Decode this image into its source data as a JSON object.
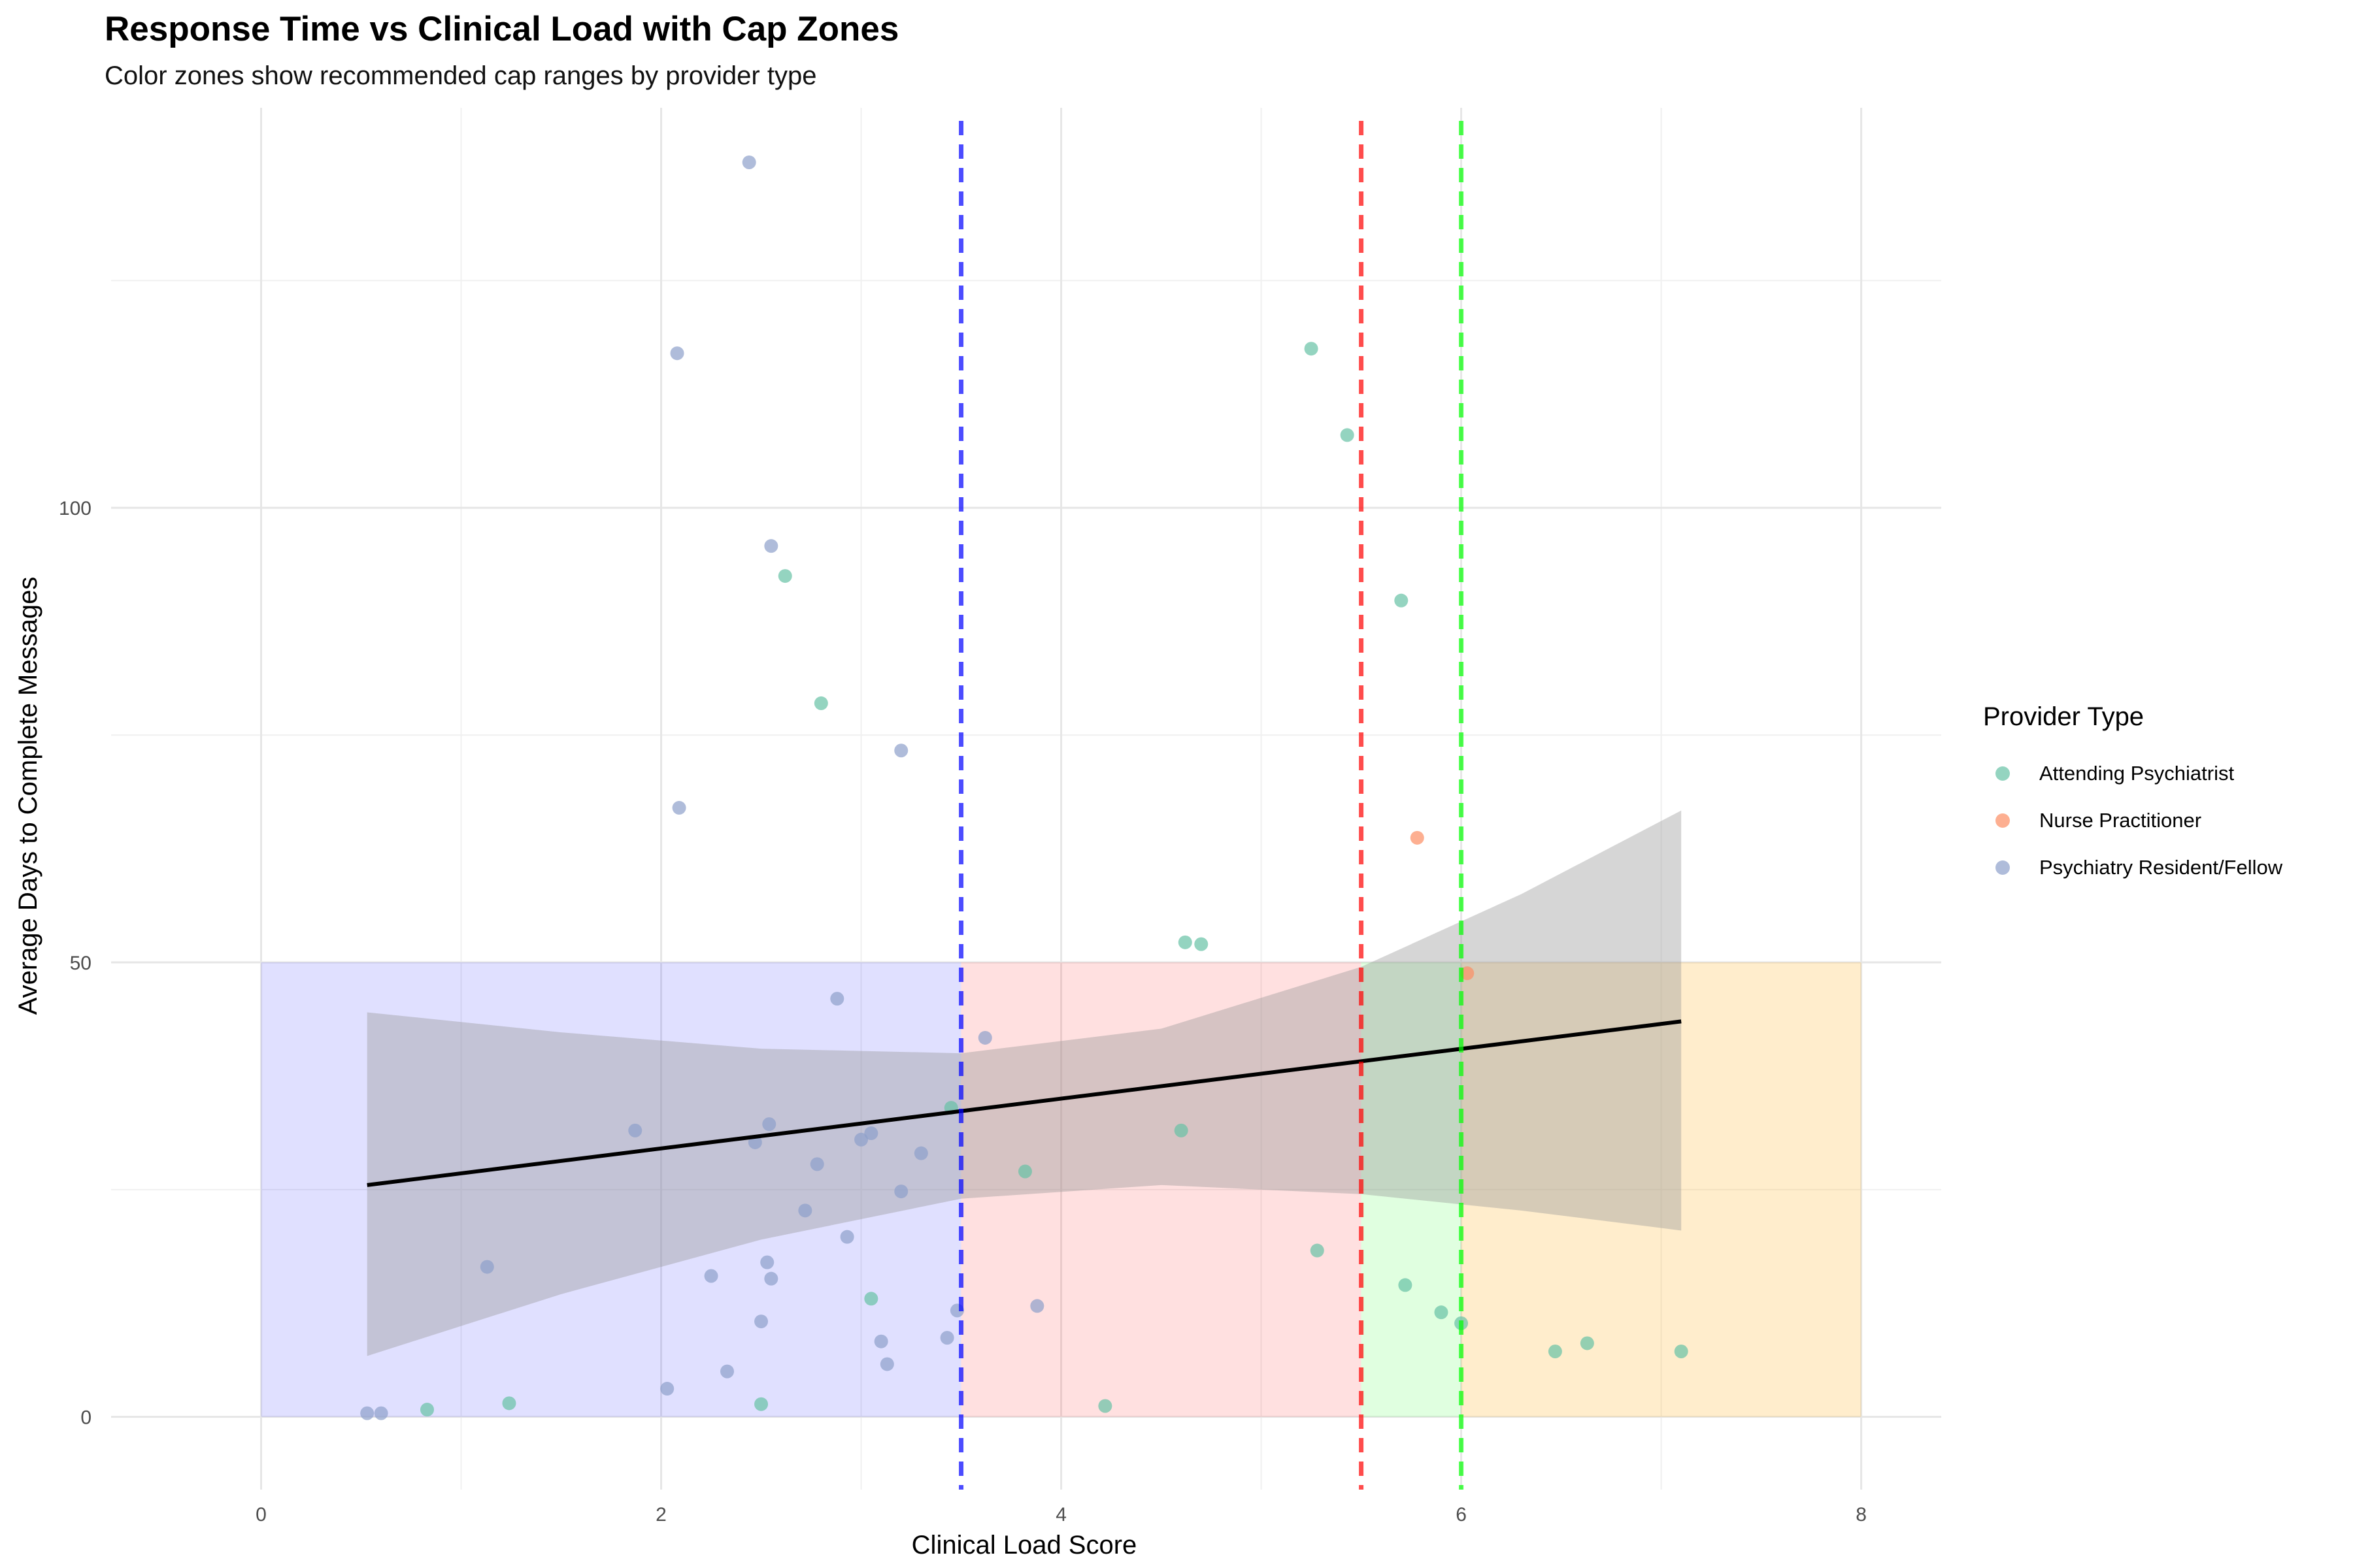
{
  "chart_data": {
    "type": "scatter",
    "title": "Response Time vs Clinical Load with Cap Zones",
    "subtitle": "Color zones show recommended cap ranges by provider type",
    "xlabel": "Clinical Load Score",
    "ylabel": "Average Days to Complete Messages",
    "xlim": [
      -0.75,
      8.4
    ],
    "ylim": [
      -8,
      144
    ],
    "x_ticks": [
      0,
      2,
      4,
      6,
      8
    ],
    "y_ticks": [
      0,
      50,
      100
    ],
    "grid": true,
    "legend": {
      "title": "Provider Type",
      "position": "right",
      "entries": [
        {
          "label": "Attending Psychiatrist",
          "color": "#66c2a5"
        },
        {
          "label": "Nurse Practitioner",
          "color": "#fc8d62"
        },
        {
          "label": "Psychiatry Resident/Fellow",
          "color": "#8da0cb"
        }
      ]
    },
    "zones": [
      {
        "x": [
          0,
          3.5
        ],
        "y": [
          0,
          50
        ],
        "color": "#0000ff",
        "opacity": 0.12
      },
      {
        "x": [
          3.5,
          5.5
        ],
        "y": [
          0,
          50
        ],
        "color": "#ff0000",
        "opacity": 0.12
      },
      {
        "x": [
          5.5,
          6.0
        ],
        "y": [
          0,
          50
        ],
        "color": "#00ff00",
        "opacity": 0.12
      },
      {
        "x": [
          6.0,
          8.0
        ],
        "y": [
          0,
          50
        ],
        "color": "#ffa500",
        "opacity": 0.2
      }
    ],
    "cap_lines": [
      {
        "x": 3.5,
        "color": "#0000ff"
      },
      {
        "x": 5.5,
        "color": "#ff0000"
      },
      {
        "x": 6.0,
        "color": "#00ff00"
      }
    ],
    "trend": {
      "x_range": [
        0.53,
        7.1
      ],
      "line": [
        [
          0.53,
          25.5
        ],
        [
          7.1,
          43.5
        ]
      ],
      "ci_upper": [
        [
          0.53,
          44.5
        ],
        [
          1.5,
          42.3
        ],
        [
          2.5,
          40.5
        ],
        [
          3.5,
          40.0
        ],
        [
          4.5,
          42.7
        ],
        [
          5.5,
          49.5
        ],
        [
          6.3,
          57.5
        ],
        [
          7.1,
          66.7
        ]
      ],
      "ci_lower": [
        [
          0.53,
          6.7
        ],
        [
          1.5,
          13.5
        ],
        [
          2.5,
          19.5
        ],
        [
          3.5,
          24.0
        ],
        [
          4.5,
          25.5
        ],
        [
          5.5,
          24.5
        ],
        [
          6.3,
          22.7
        ],
        [
          7.1,
          20.5
        ]
      ],
      "color": "#000000",
      "ci_color": "#999999"
    },
    "series": [
      {
        "name": "Attending Psychiatrist",
        "color": "#66c2a5",
        "points": [
          [
            0.83,
            0.8
          ],
          [
            1.24,
            1.5
          ],
          [
            2.5,
            1.4
          ],
          [
            2.62,
            92.5
          ],
          [
            2.8,
            78.5
          ],
          [
            3.05,
            13
          ],
          [
            3.45,
            34
          ],
          [
            3.82,
            27
          ],
          [
            4.22,
            1.2
          ],
          [
            4.6,
            31.5
          ],
          [
            4.62,
            52.2
          ],
          [
            4.7,
            52
          ],
          [
            5.25,
            117.5
          ],
          [
            5.28,
            18.3
          ],
          [
            5.43,
            108
          ],
          [
            5.7,
            89.8
          ],
          [
            5.72,
            14.5
          ],
          [
            5.9,
            11.5
          ],
          [
            6.0,
            10.3
          ],
          [
            6.47,
            7.2
          ],
          [
            6.63,
            8.1
          ],
          [
            7.1,
            7.2
          ]
        ]
      },
      {
        "name": "Nurse Practitioner",
        "color": "#fc8d62",
        "points": [
          [
            5.78,
            63.7
          ],
          [
            6.03,
            48.8
          ]
        ]
      },
      {
        "name": "Psychiatry Resident/Fellow",
        "color": "#8da0cb",
        "points": [
          [
            0.53,
            0.4
          ],
          [
            0.6,
            0.4
          ],
          [
            1.13,
            16.5
          ],
          [
            1.87,
            31.5
          ],
          [
            2.03,
            3.1
          ],
          [
            2.08,
            117
          ],
          [
            2.09,
            67
          ],
          [
            2.25,
            15.5
          ],
          [
            2.33,
            5
          ],
          [
            2.44,
            138
          ],
          [
            2.47,
            30.2
          ],
          [
            2.5,
            10.5
          ],
          [
            2.53,
            17
          ],
          [
            2.54,
            32.2
          ],
          [
            2.55,
            95.8
          ],
          [
            2.55,
            15.2
          ],
          [
            2.72,
            22.7
          ],
          [
            2.78,
            27.8
          ],
          [
            2.88,
            46
          ],
          [
            2.93,
            19.8
          ],
          [
            3.0,
            30.5
          ],
          [
            3.05,
            31.2
          ],
          [
            3.1,
            8.3
          ],
          [
            3.13,
            5.8
          ],
          [
            3.2,
            24.8
          ],
          [
            3.2,
            73.3
          ],
          [
            3.3,
            29
          ],
          [
            3.43,
            8.7
          ],
          [
            3.48,
            11.7
          ],
          [
            3.62,
            41.7
          ],
          [
            3.88,
            12.2
          ]
        ]
      }
    ]
  }
}
